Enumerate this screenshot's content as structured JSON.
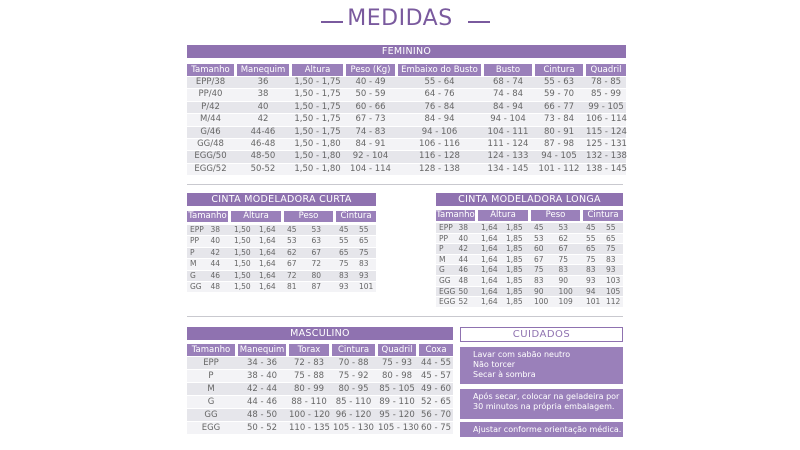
{
  "title": "MEDIDAS",
  "feminino": {
    "title": "FEMININO",
    "headers": [
      "Tamanho",
      "Manequim",
      "Altura",
      "Peso (Kg)",
      "Embaixo do Busto",
      "Busto",
      "Cintura",
      "Quadril"
    ],
    "rows": [
      [
        "EPP/38",
        "36",
        "1,50 - 1,75",
        "40 - 49",
        "55 - 64",
        "68 - 74",
        "55 - 63",
        "78 - 85"
      ],
      [
        "PP/40",
        "38",
        "1,50 - 1,75",
        "50 - 59",
        "64 - 76",
        "74 - 84",
        "59 - 70",
        "85 - 99"
      ],
      [
        "P/42",
        "40",
        "1,50 - 1,75",
        "60 - 66",
        "76 - 84",
        "84 - 94",
        "66 - 77",
        "99 - 105"
      ],
      [
        "M/44",
        "42",
        "1,50 - 1,75",
        "67 - 73",
        "84 - 94",
        "94 - 104",
        "73 - 84",
        "106 - 114"
      ],
      [
        "G/46",
        "44-46",
        "1,50 - 1,75",
        "74 - 83",
        "94 - 106",
        "104 - 111",
        "80 - 91",
        "115 - 124"
      ],
      [
        "GG/48",
        "46-48",
        "1,50 - 1,80",
        "84 - 91",
        "106 - 116",
        "111 - 124",
        "87 - 98",
        "125 - 131"
      ],
      [
        "EGG/50",
        "48-50",
        "1,50 - 1,80",
        "92 - 104",
        "116 - 128",
        "124 - 133",
        "94 - 105",
        "132 - 138"
      ],
      [
        "EGG/52",
        "50-52",
        "1,50 - 1,80",
        "104 - 114",
        "128 - 138",
        "134 - 145",
        "101 - 112",
        "138 - 145"
      ]
    ]
  },
  "cinta_curta": {
    "title": "CINTA MODELADORA CURTA",
    "headers": [
      "Tamanho",
      "Altura",
      "Peso",
      "Cintura"
    ],
    "rows": [
      [
        "EPP",
        "38",
        "1,50",
        "1,64",
        "45",
        "53",
        "45",
        "55"
      ],
      [
        "PP",
        "40",
        "1,50",
        "1,64",
        "53",
        "63",
        "55",
        "65"
      ],
      [
        "P",
        "42",
        "1,50",
        "1,64",
        "62",
        "67",
        "65",
        "75"
      ],
      [
        "M",
        "44",
        "1,50",
        "1,64",
        "67",
        "72",
        "75",
        "83"
      ],
      [
        "G",
        "46",
        "1,50",
        "1,64",
        "72",
        "80",
        "83",
        "93"
      ],
      [
        "GG",
        "48",
        "1,50",
        "1,64",
        "81",
        "87",
        "93",
        "101"
      ]
    ]
  },
  "cinta_longa": {
    "title": "CINTA MODELADORA LONGA",
    "headers": [
      "Tamanho",
      "Altura",
      "Peso",
      "Cintura"
    ],
    "rows": [
      [
        "EPP",
        "38",
        "1,64",
        "1,85",
        "45",
        "53",
        "45",
        "55"
      ],
      [
        "PP",
        "40",
        "1,64",
        "1,85",
        "53",
        "62",
        "55",
        "65"
      ],
      [
        "P",
        "42",
        "1,64",
        "1,85",
        "60",
        "67",
        "65",
        "75"
      ],
      [
        "M",
        "44",
        "1,64",
        "1,85",
        "67",
        "75",
        "75",
        "83"
      ],
      [
        "G",
        "46",
        "1,64",
        "1,85",
        "75",
        "83",
        "83",
        "93"
      ],
      [
        "GG",
        "48",
        "1,64",
        "1,85",
        "83",
        "90",
        "93",
        "103"
      ],
      [
        "EGG",
        "50",
        "1,64",
        "1,85",
        "90",
        "100",
        "94",
        "105"
      ],
      [
        "EGG",
        "52",
        "1,64",
        "1,85",
        "100",
        "109",
        "101",
        "112"
      ]
    ]
  },
  "masculino": {
    "title": "MASCULINO",
    "headers": [
      "Tamanho",
      "Manequim",
      "Torax",
      "Cintura",
      "Quadril",
      "Coxa"
    ],
    "rows": [
      [
        "EPP",
        "34 - 36",
        "72 - 83",
        "70 - 88",
        "75 - 93",
        "44 - 55"
      ],
      [
        "P",
        "38 - 40",
        "75 - 88",
        "75 - 92",
        "80 - 98",
        "45 - 57"
      ],
      [
        "M",
        "42 - 44",
        "80 - 99",
        "80 - 95",
        "85 - 105",
        "49 - 60"
      ],
      [
        "G",
        "44 - 46",
        "88 - 110",
        "85 - 110",
        "89 - 110",
        "52 - 65"
      ],
      [
        "GG",
        "48 - 50",
        "100 - 120",
        "96 - 120",
        "95 - 120",
        "56 - 70"
      ],
      [
        "EGG",
        "50 - 52",
        "110 - 135",
        "105 - 130",
        "105 - 130",
        "60 - 75"
      ]
    ]
  },
  "cuidados": {
    "title": "CUIDADOS",
    "boxes": [
      [
        "Lavar com sabão neutro",
        "Não torcer",
        "Secar à sombra"
      ],
      [
        "Após secar, colocar na geladeira por",
        "30 minutos na própria embalagem."
      ],
      [
        "Ajustar conforme orientação médica."
      ]
    ]
  }
}
